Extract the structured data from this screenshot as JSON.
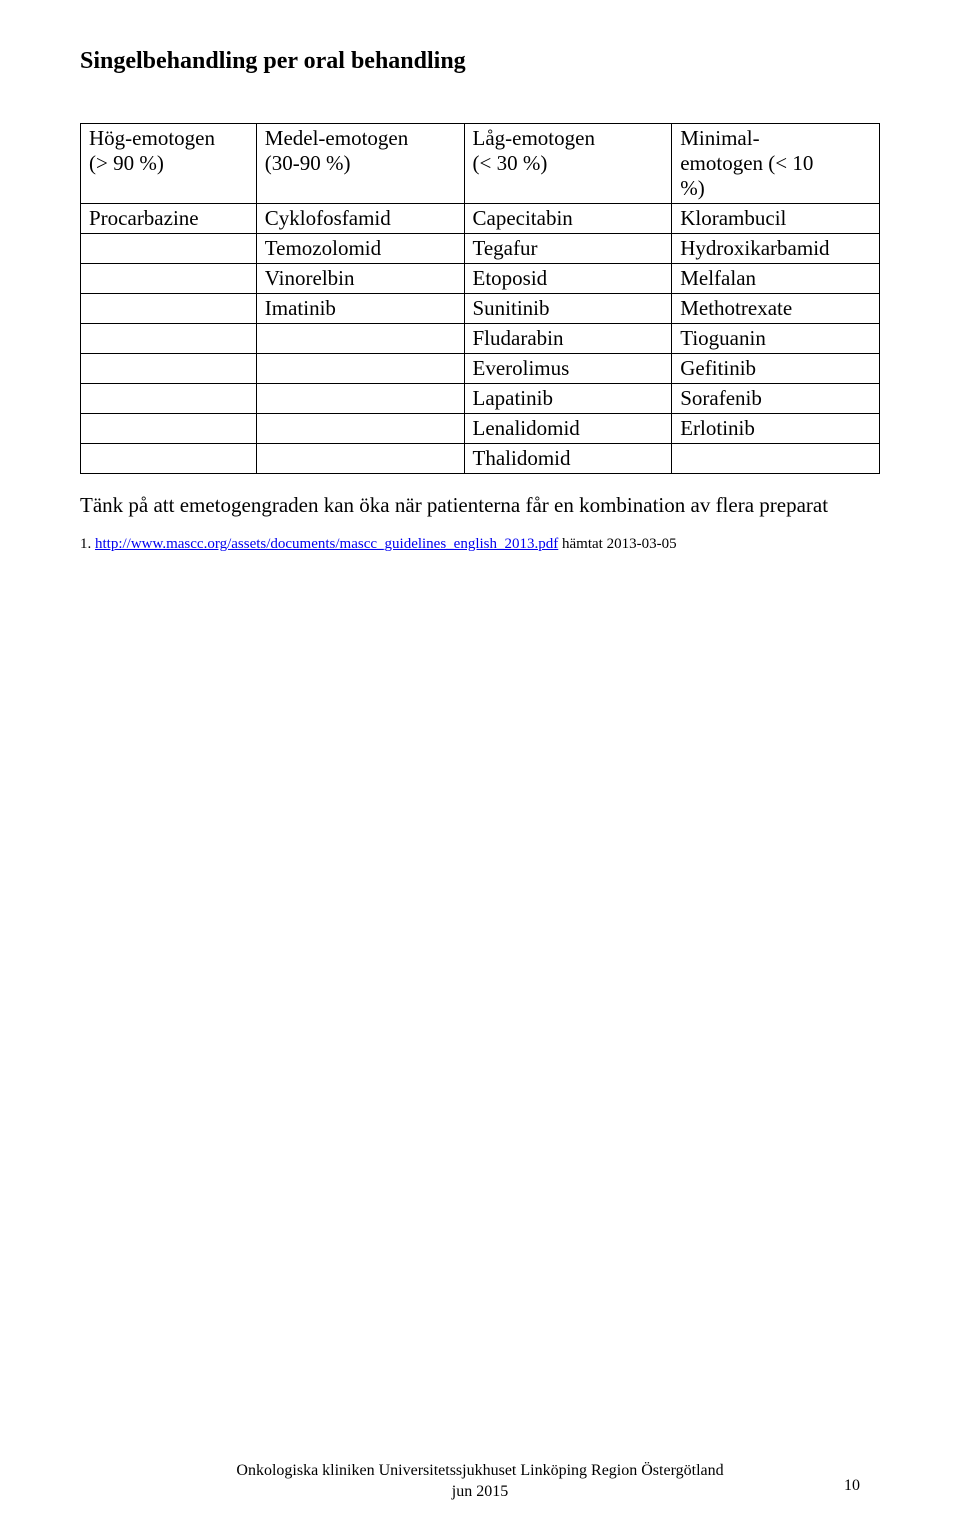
{
  "heading": "Singelbehandling per oral behandling",
  "table": {
    "headers": [
      {
        "line1": "Hög-emotogen",
        "line2": "(> 90 %)"
      },
      {
        "line1": "Medel-emotogen",
        "line2": "(30-90 %)"
      },
      {
        "line1": "Låg-emotogen",
        "line2": "(< 30 %)"
      },
      {
        "line1": "Minimal-",
        "line2": "emotogen (< 10",
        "line3": "%)"
      }
    ],
    "rows": [
      [
        "Procarbazine",
        "Cyklofosfamid",
        "Capecitabin",
        "Klorambucil"
      ],
      [
        "",
        "Temozolomid",
        "Tegafur",
        "Hydroxikarbamid"
      ],
      [
        "",
        "Vinorelbin",
        "Etoposid",
        "Melfalan"
      ],
      [
        "",
        "Imatinib",
        "Sunitinib",
        "Methotrexate"
      ],
      [
        "",
        "",
        "Fludarabin",
        "Tioguanin"
      ],
      [
        "",
        "",
        "Everolimus",
        "Gefitinib"
      ],
      [
        "",
        "",
        "Lapatinib",
        "Sorafenib"
      ],
      [
        "",
        "",
        "Lenalidomid",
        "Erlotinib"
      ],
      [
        "",
        "",
        "Thalidomid",
        ""
      ]
    ]
  },
  "note": "Tänk på att emetogengraden kan öka när patienterna får en kombination av flera preparat",
  "ref_prefix": "1. ",
  "ref_link_text": "http://www.mascc.org/assets/documents/mascc_guidelines_english_2013.pdf",
  "ref_suffix": " hämtat 2013-03-05",
  "footer_line1": "Onkologiska kliniken Universitetssjukhuset Linköping Region Östergötland",
  "footer_line2": "jun 2015",
  "page_number": "10"
}
